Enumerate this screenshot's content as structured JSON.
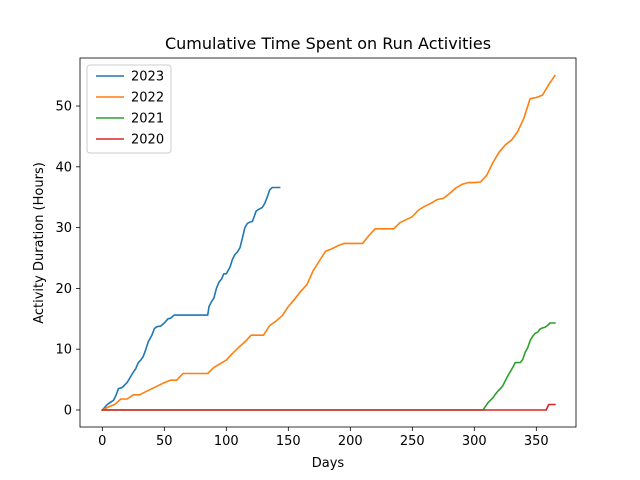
{
  "chart_data": {
    "type": "line",
    "title": "Cumulative Time Spent on Run Activities",
    "xlabel": "Days",
    "ylabel": "Activity Duration (Hours)",
    "xlim": [
      -18,
      382
    ],
    "ylim": [
      -2.8,
      57.9
    ],
    "xticks": [
      0,
      50,
      100,
      150,
      200,
      250,
      300,
      350
    ],
    "yticks": [
      0,
      10,
      20,
      30,
      40,
      50
    ],
    "legend_position": "top-left",
    "series": [
      {
        "name": "2023",
        "color": "#1f77b4",
        "x": [
          0,
          4,
          6,
          9,
          11,
          13,
          16,
          20,
          22,
          24,
          27,
          29,
          31,
          33,
          35,
          37,
          40,
          42,
          44,
          47,
          50,
          53,
          55,
          58,
          61,
          63,
          66,
          70,
          75,
          80,
          85,
          86,
          88,
          90,
          92,
          94,
          96,
          98,
          100,
          103,
          105,
          107,
          109,
          111,
          113,
          115,
          117,
          119,
          121,
          124,
          126,
          129,
          131,
          133,
          135,
          137,
          139,
          141,
          143
        ],
        "values": [
          0,
          0.9,
          1.2,
          1.6,
          2.4,
          3.5,
          3.7,
          4.5,
          5.2,
          5.9,
          6.8,
          7.8,
          8.2,
          8.8,
          9.9,
          11.2,
          12.3,
          13.4,
          13.7,
          13.8,
          14.3,
          15.0,
          15.1,
          15.6,
          15.6,
          15.6,
          15.6,
          15.6,
          15.6,
          15.6,
          15.6,
          17.0,
          17.8,
          18.4,
          20.0,
          21.0,
          21.5,
          22.4,
          22.4,
          23.5,
          24.8,
          25.6,
          26.0,
          26.7,
          28.3,
          30.0,
          30.7,
          30.9,
          31.0,
          32.7,
          33.0,
          33.3,
          34.0,
          35.0,
          36.2,
          36.6,
          36.6,
          36.6,
          36.6
        ]
      },
      {
        "name": "2022",
        "color": "#ff7f0e",
        "x": [
          0,
          5,
          10,
          15,
          20,
          25,
          30,
          35,
          40,
          45,
          50,
          55,
          60,
          65,
          70,
          75,
          80,
          85,
          90,
          95,
          100,
          105,
          110,
          115,
          120,
          125,
          130,
          135,
          140,
          145,
          150,
          155,
          160,
          165,
          170,
          175,
          180,
          185,
          190,
          195,
          200,
          205,
          210,
          215,
          220,
          225,
          230,
          235,
          240,
          245,
          250,
          255,
          260,
          265,
          270,
          275,
          280,
          285,
          290,
          295,
          300,
          305,
          310,
          315,
          320,
          325,
          330,
          335,
          340,
          345,
          350,
          355,
          360,
          365
        ],
        "values": [
          0,
          0.5,
          0.9,
          1.8,
          1.8,
          2.5,
          2.5,
          3.0,
          3.5,
          4.0,
          4.5,
          4.9,
          4.9,
          6.0,
          6.0,
          6.0,
          6.0,
          6.0,
          7.0,
          7.6,
          8.2,
          9.3,
          10.3,
          11.2,
          12.3,
          12.3,
          12.3,
          13.9,
          14.6,
          15.5,
          17.0,
          18.2,
          19.5,
          20.6,
          22.9,
          24.5,
          26.1,
          26.5,
          27.0,
          27.4,
          27.4,
          27.4,
          27.4,
          28.7,
          29.8,
          29.8,
          29.8,
          29.8,
          30.8,
          31.3,
          31.8,
          32.9,
          33.5,
          34.0,
          34.6,
          34.8,
          35.6,
          36.5,
          37.1,
          37.4,
          37.4,
          37.5,
          38.6,
          40.7,
          42.4,
          43.6,
          44.4,
          45.8,
          48.0,
          51.2,
          51.4,
          51.8,
          53.5,
          55.0
        ]
      },
      {
        "name": "2021",
        "color": "#2ca02c",
        "x": [
          0,
          50,
          100,
          150,
          200,
          250,
          300,
          307,
          309,
          311,
          313,
          315,
          317,
          319,
          321,
          323,
          325,
          327,
          329,
          331,
          333,
          335,
          337,
          339,
          341,
          343,
          345,
          347,
          349,
          351,
          353,
          355,
          357,
          359,
          361,
          363,
          365
        ],
        "values": [
          0,
          0,
          0,
          0,
          0,
          0,
          0,
          0,
          0.6,
          1.2,
          1.6,
          2.0,
          2.6,
          3.1,
          3.5,
          4.0,
          4.8,
          5.6,
          6.3,
          7.0,
          7.8,
          7.8,
          7.8,
          8.3,
          9.5,
          10.2,
          11.4,
          12.1,
          12.6,
          12.8,
          13.3,
          13.5,
          13.6,
          13.9,
          14.3,
          14.3,
          14.3
        ]
      },
      {
        "name": "2020",
        "color": "#d62728",
        "x": [
          0,
          50,
          100,
          150,
          200,
          250,
          300,
          350,
          358,
          360,
          362,
          365
        ],
        "values": [
          0,
          0,
          0,
          0,
          0,
          0,
          0,
          0,
          0,
          0.9,
          0.9,
          0.9
        ]
      }
    ]
  }
}
